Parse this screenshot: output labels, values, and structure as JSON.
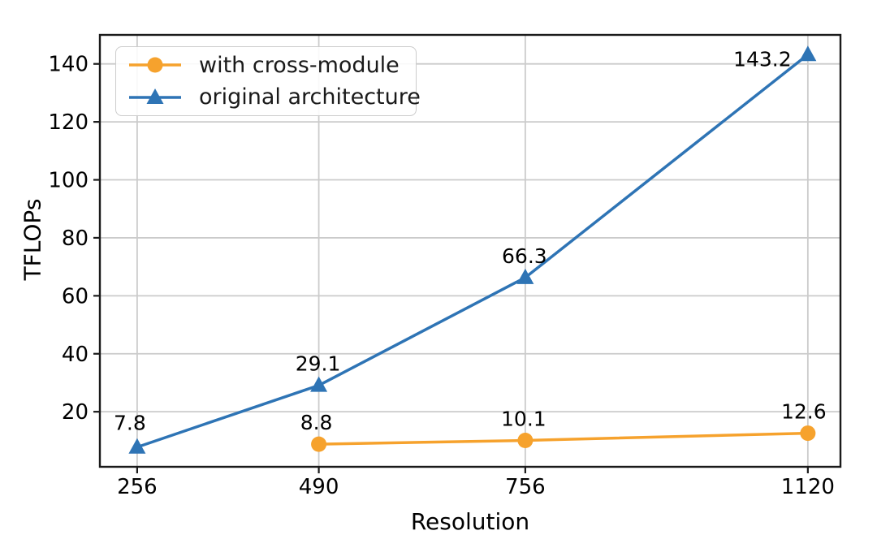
{
  "figure": {
    "background": "#ffffff",
    "text_color": "#000000",
    "grid_color": "#cbcbcb",
    "spine_color": "#1a1a1a"
  },
  "chart_data": {
    "type": "line",
    "title": "",
    "xlabel": "Resolution",
    "ylabel": "TFLOPs",
    "grid": true,
    "legend_position": "upper-left",
    "x_ticks": [
      256,
      490,
      756,
      1120
    ],
    "x_tick_labels": [
      "256",
      "490",
      "756",
      "1120"
    ],
    "y_ticks": [
      20,
      40,
      60,
      80,
      100,
      120,
      140
    ],
    "y_tick_labels": [
      "20",
      "40",
      "60",
      "80",
      "100",
      "120",
      "140"
    ],
    "xlim": [
      208,
      1162
    ],
    "ylim": [
      1,
      150
    ],
    "series": [
      {
        "name": "with cross-module",
        "color": "#F6A22D",
        "marker": "circle",
        "x": [
          490,
          756,
          1120
        ],
        "values": [
          8.8,
          10.1,
          12.6
        ],
        "point_labels": [
          "8.8",
          "10.1",
          "12.6"
        ],
        "label_offsets": [
          {
            "dx": -3,
            "dy": -27
          },
          {
            "dx": -2,
            "dy": -27
          },
          {
            "dx": -5,
            "dy": -27
          }
        ]
      },
      {
        "name": "original architecture",
        "color": "#2E74B5",
        "marker": "triangle",
        "x": [
          256,
          490,
          756,
          1120
        ],
        "values": [
          7.8,
          29.1,
          66.3,
          143.2
        ],
        "point_labels": [
          "7.8",
          "29.1",
          "66.3",
          "143.2"
        ],
        "label_offsets": [
          {
            "dx": -9,
            "dy": -30
          },
          {
            "dx": -1,
            "dy": -27
          },
          {
            "dx": -1,
            "dy": -27
          },
          {
            "dx": -56,
            "dy": 5
          }
        ]
      }
    ]
  }
}
